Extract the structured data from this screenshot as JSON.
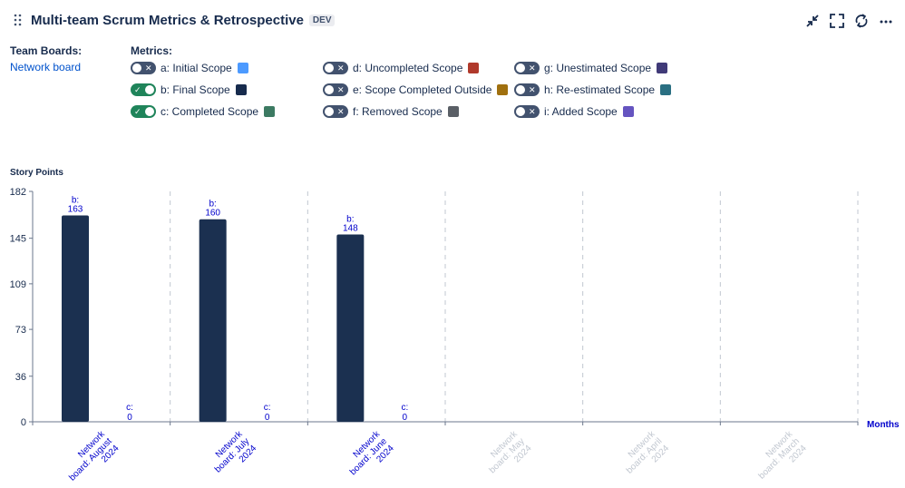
{
  "header": {
    "title": "Multi-team Scrum Metrics & Retrospective",
    "badge": "DEV",
    "icons": [
      "drag-handle-icon",
      "collapse-icon",
      "fullscreen-icon",
      "refresh-icon",
      "more-icon"
    ]
  },
  "team_boards": {
    "label": "Team Boards:",
    "link": "Network board"
  },
  "metrics": {
    "label": "Metrics:",
    "items": [
      {
        "label": "a: Initial Scope",
        "on": false,
        "color": "#4c9aff"
      },
      {
        "label": "b: Final Scope",
        "on": true,
        "color": "#172b4d"
      },
      {
        "label": "c: Completed Scope",
        "on": true,
        "color": "#3c7a62"
      },
      {
        "label": "d: Uncompleted Scope",
        "on": false,
        "color": "#b0392b"
      },
      {
        "label": "e: Scope Completed Outside",
        "on": false,
        "color": "#a0700f"
      },
      {
        "label": "f: Removed Scope",
        "on": false,
        "color": "#5a5f66"
      },
      {
        "label": "g: Unestimated Scope",
        "on": false,
        "color": "#403a78"
      },
      {
        "label": "h: Re-estimated Scope",
        "on": false,
        "color": "#2a6f82"
      },
      {
        "label": "i: Added Scope",
        "on": false,
        "color": "#6554c0"
      }
    ]
  },
  "chart_data": {
    "type": "bar",
    "ylabel": "Story Points",
    "xlabel": "Months",
    "yticks": [
      0,
      36,
      73,
      109,
      145,
      182
    ],
    "ylim": [
      0,
      182
    ],
    "categories": [
      "Network board: August 2024",
      "Network board: July 2024",
      "Network board: June 2024",
      "Network board: May 2024",
      "Network board: April 2024",
      "Network board: March 2024"
    ],
    "category_active": [
      true,
      true,
      true,
      false,
      false,
      false
    ],
    "series": [
      {
        "key": "b",
        "values": [
          163,
          160,
          148,
          null,
          null,
          null
        ],
        "color": "#1b3050"
      },
      {
        "key": "c",
        "values": [
          0,
          0,
          0,
          null,
          null,
          null
        ],
        "color": "#3c7a62"
      }
    ],
    "grid": "vertical-dashed"
  }
}
